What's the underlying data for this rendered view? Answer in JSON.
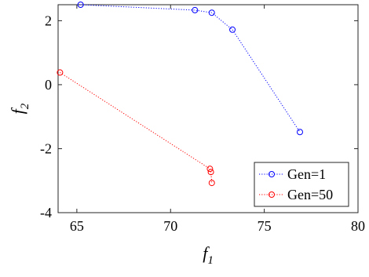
{
  "chart_data": {
    "type": "line",
    "xlabel": "f",
    "xlabel_sub": "1",
    "ylabel": "f",
    "ylabel_sub": "2",
    "xlim": [
      64,
      80
    ],
    "ylim": [
      -4,
      2.5
    ],
    "xticks": [
      65,
      70,
      75,
      80
    ],
    "yticks": [
      -4,
      -2,
      0,
      2
    ],
    "xtick_labels": [
      "65",
      "70",
      "75",
      "80"
    ],
    "ytick_labels": [
      "-4",
      "-2",
      "0",
      "2"
    ],
    "grid": false,
    "legend_position": "bottom-right",
    "series": [
      {
        "name": "Gen=1",
        "color": "#0000ff",
        "marker": "circle",
        "line_style": "dotted",
        "x": [
          65.2,
          71.3,
          72.2,
          73.3,
          76.9
        ],
        "y": [
          2.5,
          2.33,
          2.25,
          1.72,
          -1.48
        ]
      },
      {
        "name": "Gen=50",
        "color": "#ff0000",
        "marker": "circle",
        "line_style": "dotted",
        "x": [
          64.1,
          72.1,
          72.15,
          72.2
        ],
        "y": [
          0.38,
          -2.63,
          -2.73,
          -3.07
        ]
      }
    ]
  }
}
